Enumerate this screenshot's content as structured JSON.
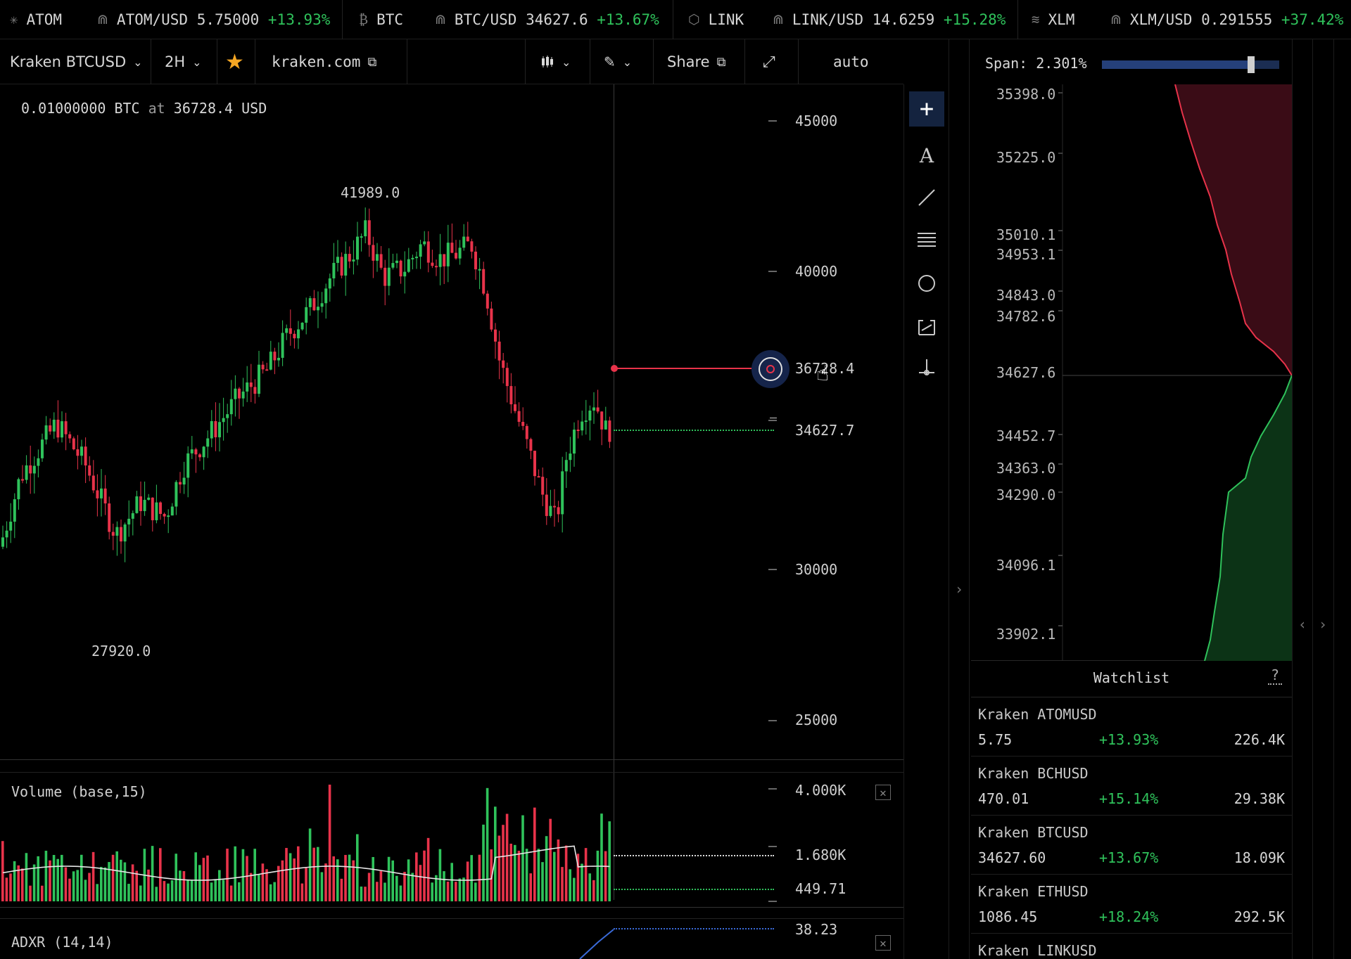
{
  "ticker": [
    {
      "icon": "✳",
      "symbol": "ATOM",
      "pair": "ATOM/USD",
      "price": "5.75000",
      "change": "+13.93%"
    },
    {
      "icon": "₿",
      "symbol": "BTC",
      "pair": "BTC/USD",
      "price": "34627.6",
      "change": "+13.67%"
    },
    {
      "icon": "⬡",
      "symbol": "LINK",
      "pair": "LINK/USD",
      "price": "14.6259",
      "change": "+15.28%"
    },
    {
      "icon": "≋",
      "symbol": "XLM",
      "pair": "XLM/USD",
      "price": "0.291555",
      "change": "+37.42%"
    }
  ],
  "toolbar": {
    "market": "Kraken BTCUSD",
    "interval": "2H",
    "source": "kraken.com",
    "share": "Share",
    "scale": "auto"
  },
  "chart": {
    "order_info_qty": "0.01000000",
    "order_info_base": "BTC",
    "order_info_at": "at",
    "order_info_price": "36728.4",
    "order_info_quote": "USD",
    "high_label": "41989.0",
    "low_label": "27920.0",
    "y_ticks": [
      "45000",
      "40000",
      "30000",
      "25000"
    ],
    "cursor_price": "36728.4",
    "last_price": "34627.7"
  },
  "volume_panel": {
    "title": "Volume  (base,15)",
    "ticks": [
      "4.000K",
      "1.680K",
      "449.71"
    ]
  },
  "adxr_panel": {
    "title": "ADXR  (14,14)",
    "tick": "38.23"
  },
  "depth": {
    "span_label": "Span: 2.301%",
    "span_fraction": 0.84,
    "ask_levels": [
      "35398.0",
      "35225.0",
      "35010.1",
      "34953.1",
      "34843.0",
      "34782.6"
    ],
    "mid_level": "34627.6",
    "bid_levels": [
      "34452.7",
      "34363.0",
      "34290.0",
      "34096.1",
      "33902.1"
    ]
  },
  "watchlist": {
    "title": "Watchlist",
    "help": "?",
    "items": [
      {
        "name": "Kraken ATOMUSD",
        "price": "5.75",
        "change": "+13.93%",
        "volume": "226.4K"
      },
      {
        "name": "Kraken BCHUSD",
        "price": "470.01",
        "change": "+15.14%",
        "volume": "29.38K"
      },
      {
        "name": "Kraken BTCUSD",
        "price": "34627.60",
        "change": "+13.67%",
        "volume": "18.09K"
      },
      {
        "name": "Kraken ETHUSD",
        "price": "1086.45",
        "change": "+18.24%",
        "volume": "292.5K"
      },
      {
        "name": "Kraken LINKUSD",
        "price": "",
        "change": "",
        "volume": ""
      }
    ]
  },
  "colors": {
    "up": "#2fc25b",
    "down": "#e8334a",
    "accent": "#f5a623",
    "bg": "#000000"
  },
  "icons": [
    "cosmos-icon",
    "bitcoin-icon",
    "chainlink-icon",
    "stellar-icon",
    "chevron-down-icon",
    "star-icon",
    "external-link-icon",
    "candles-icon",
    "pencil-icon",
    "expand-icon",
    "crosshair-icon",
    "text-icon",
    "line-icon",
    "fib-icon",
    "circle-icon",
    "measure-icon",
    "anchor-icon",
    "close-icon",
    "chevron-right-icon",
    "chevron-left-icon"
  ]
}
